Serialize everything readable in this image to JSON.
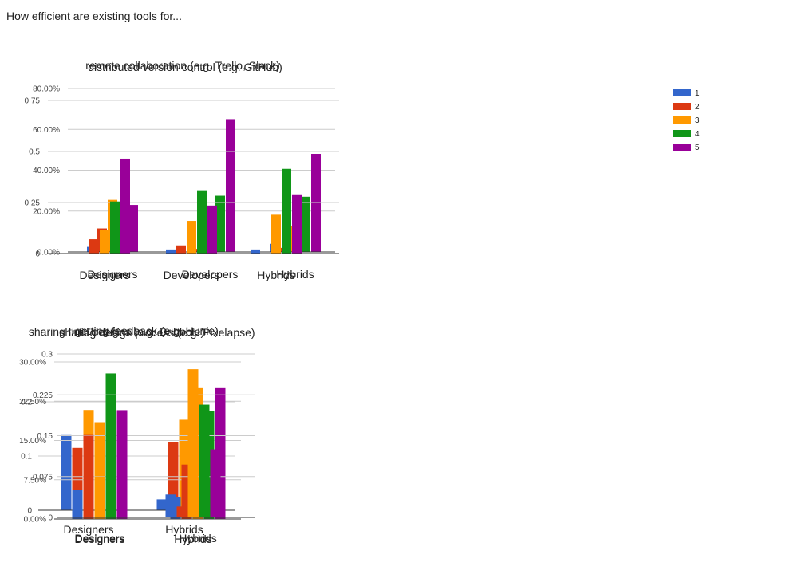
{
  "page": {
    "title": "How efficient are existing tools for..."
  },
  "legend": [
    {
      "label": "1",
      "color": "#3366cc"
    },
    {
      "label": "2",
      "color": "#dc3912"
    },
    {
      "label": "3",
      "color": "#ff9900"
    },
    {
      "label": "4",
      "color": "#109618"
    },
    {
      "label": "5",
      "color": "#990099"
    }
  ],
  "chart_data": [
    {
      "type": "bar",
      "title": "distributed version control (e.g. GitHub)",
      "categories": [
        "Designers",
        "Developers",
        "Hybrids"
      ],
      "ylim": [
        0,
        0.8
      ],
      "yticks": [
        0,
        0.2,
        0.4,
        0.6,
        0.8
      ],
      "yticklabels": [
        "0.00%",
        "20.00%",
        "40.00%",
        "60.00%",
        "80.00%"
      ],
      "series": [
        {
          "name": "1",
          "color": "#3366cc",
          "values": [
            0.025,
            0,
            0.04
          ]
        },
        {
          "name": "2",
          "color": "#dc3912",
          "values": [
            0.115,
            0.015,
            0.02
          ]
        },
        {
          "name": "3",
          "color": "#ff9900",
          "values": [
            0.255,
            0,
            0.125
          ]
        },
        {
          "name": "4",
          "color": "#109618",
          "values": [
            0.16,
            0.275,
            0.27
          ]
        },
        {
          "name": "5",
          "color": "#990099",
          "values": [
            0.23,
            0.65,
            0.48
          ]
        }
      ],
      "legend": "none"
    },
    {
      "type": "bar",
      "title": "remote collaboration (e.g. Trello, Slack)",
      "categories": [
        "Designers",
        "Developers",
        "Hybrids"
      ],
      "ylim": [
        0,
        0.75
      ],
      "yticks": [
        0,
        0.25,
        0.5,
        0.75
      ],
      "yticklabels": [
        "0",
        "0.25",
        "0.5",
        "0.75"
      ],
      "series": [
        {
          "name": "1",
          "color": "#3366cc",
          "values": [
            0,
            0.02,
            0.02
          ]
        },
        {
          "name": "2",
          "color": "#dc3912",
          "values": [
            0.07,
            0.04,
            0
          ]
        },
        {
          "name": "3",
          "color": "#ff9900",
          "values": [
            0.115,
            0.16,
            0.19
          ]
        },
        {
          "name": "4",
          "color": "#109618",
          "values": [
            0.255,
            0.31,
            0.415
          ]
        },
        {
          "name": "5",
          "color": "#990099",
          "values": [
            0.465,
            0.235,
            0.29
          ]
        }
      ],
      "legend": "right"
    },
    {
      "type": "bar",
      "title": "getting feedback (e.g. Hunie)",
      "categories": [
        "Designers",
        "Hybrids"
      ],
      "ylim": [
        0,
        0.2
      ],
      "yticks": [
        0,
        0.1,
        0.2
      ],
      "yticklabels": [
        "0",
        "0.1",
        "0.2"
      ],
      "series": [
        {
          "name": "1",
          "color": "#3366cc",
          "values": [
            0.14,
            0.02
          ]
        },
        {
          "name": "2",
          "color": "#dc3912",
          "values": [
            0.115,
            0.125
          ]
        },
        {
          "name": "3",
          "color": "#ff9900",
          "values": [
            0.185,
            0.167
          ]
        },
        {
          "name": "4",
          "color": "#109618",
          "values": [
            0.093,
            0.188
          ]
        },
        {
          "name": "5",
          "color": "#990099",
          "values": [
            0.07,
            0.02
          ]
        }
      ],
      "legend": "none"
    },
    {
      "type": "bar",
      "title": "sharing final designs (e.g. Dribbble)",
      "categories": [
        "Designers",
        "Hybrids"
      ],
      "ylim": [
        0,
        0.3
      ],
      "yticks": [
        0,
        0.075,
        0.15,
        0.225,
        0.3
      ],
      "yticklabels": [
        "0.00%",
        "7.50%",
        "15.00%",
        "22.50%",
        "30.00%"
      ],
      "series": [
        {
          "name": "1",
          "color": "#3366cc",
          "values": [
            0.045,
            0.042
          ]
        },
        {
          "name": "2",
          "color": "#dc3912",
          "values": [
            0.162,
            0.104
          ]
        },
        {
          "name": "3",
          "color": "#ff9900",
          "values": [
            0.185,
            0.25
          ]
        },
        {
          "name": "4",
          "color": "#109618",
          "values": [
            0.278,
            0.207
          ]
        },
        {
          "name": "5",
          "color": "#990099",
          "values": [
            0.208,
            0.25
          ]
        }
      ],
      "legend": "none"
    },
    {
      "type": "bar",
      "title": "sharing design process (e.g. Pixelapse)",
      "categories": [
        "Designers",
        "Hybrids"
      ],
      "ylim": [
        0,
        0.3
      ],
      "yticks": [
        0,
        0.075,
        0.15,
        0.225,
        0.3
      ],
      "yticklabels": [
        "0",
        "0.075",
        "0.15",
        "0.225",
        "0.3"
      ],
      "series": [
        {
          "name": "1",
          "color": "#3366cc",
          "values": [
            0.05,
            0.042
          ]
        },
        {
          "name": "2",
          "color": "#dc3912",
          "values": [
            0.15,
            0.02
          ]
        },
        {
          "name": "3",
          "color": "#ff9900",
          "values": [
            0.075,
            0.272
          ]
        },
        {
          "name": "4",
          "color": "#109618",
          "values": [
            0.225,
            0.207
          ]
        },
        {
          "name": "5",
          "color": "#990099",
          "values": [
            0.175,
            0.125
          ]
        }
      ],
      "legend": "none"
    }
  ]
}
